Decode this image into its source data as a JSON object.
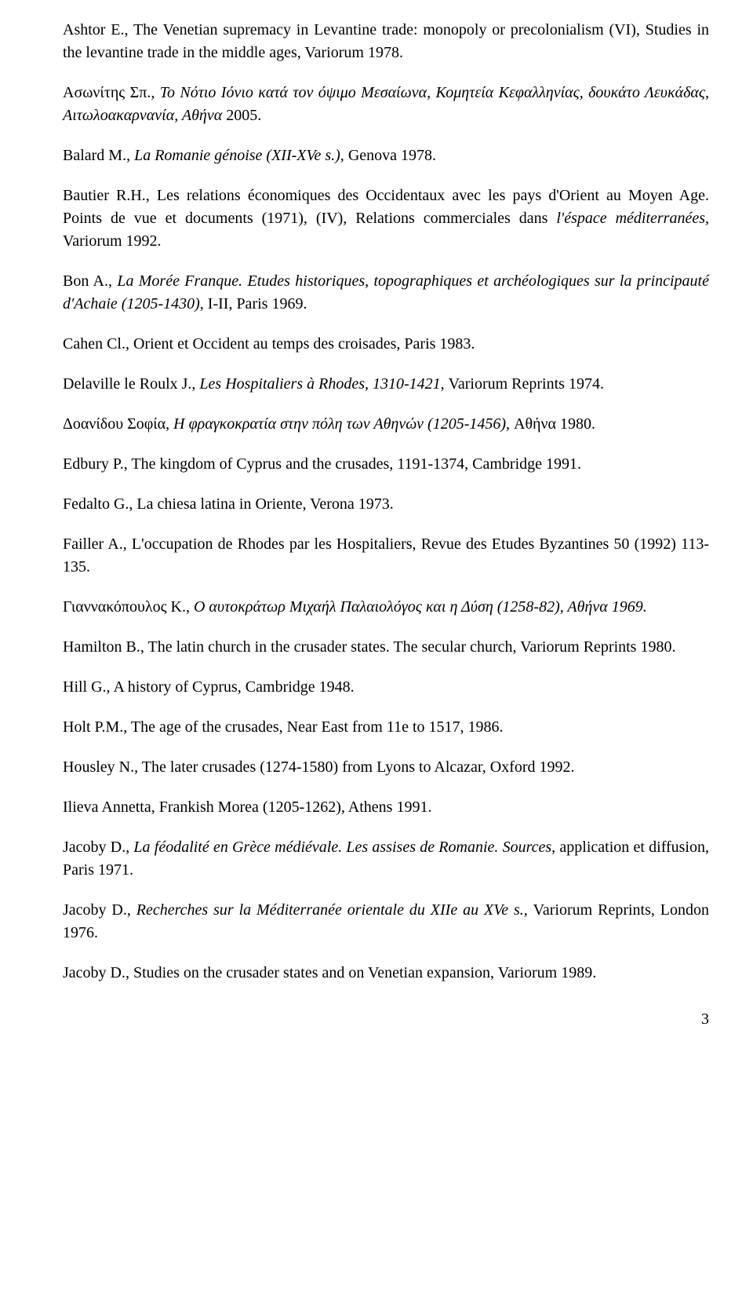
{
  "entries": [
    {
      "pre": "Ashtor E., The Venetian supremacy in Levantine trade: monopoly or precolonialism (VI), Studies in the levantine trade in the middle ages, Variorum 1978."
    },
    {
      "pre": "Ασωνίτης Σπ., ",
      "it": "Το Νότιο Ιόνιο κατά τον όψιμο Μεσαίωνα, Κομητεία Κεφαλληνίας, δουκάτο Λευκάδας, Αιτωλοακαρνανία, Αθήνα ",
      "post": "2005."
    },
    {
      "pre": "Balard M., ",
      "it": "La Romanie génoise (XII-XVe s.), ",
      "post": "Genova 1978."
    },
    {
      "pre": "Bautier R.H., Les relations économiques des Occidentaux avec les pays d'Orient au Moyen Age. Points de vue et documents (1971), (IV),  Relations commerciales dans ",
      "it": "l'éspace méditerranées, ",
      "post": "Variorum 1992."
    },
    {
      "pre": "Bon A., ",
      "it": "La Morée Franque. Etudes historiques, topographiques et archéologiques sur la principauté d'Achaie (1205-1430), ",
      "post": "I-II, Paris 1969."
    },
    {
      "pre": "Cahen Cl., Orient et Occident au temps des croisades, Paris 1983."
    },
    {
      "pre": "Delaville le Roulx J., ",
      "it": "Les Hospitaliers à Rhodes, 1310-1421, ",
      "post": "Variorum Reprints 1974."
    },
    {
      "pre": "Δοανίδου Σοφία, ",
      "it": "Η φραγκοκρατία στην πόλη των Αθηνών (1205-1456), ",
      "post": "Αθήνα 1980."
    },
    {
      "pre": "Edbury P., The kingdom of Cyprus and the crusades, 1191-1374, Cambridge 1991."
    },
    {
      "pre": "Fedalto G., La chiesa latina in Oriente, Verona 1973."
    },
    {
      "pre": "Failler A., L'occupation de Rhodes par les Hospitaliers, Revue des Etudes Byzantines 50 (1992) 113-135."
    },
    {
      "pre": "Γιαννακόπουλος Κ., ",
      "it": "Ο αυτοκράτωρ Μιχαήλ Παλαιολόγος και η Δύση (1258-82), Αθήνα 1969."
    },
    {
      "pre": "Hamilton B., The latin church in the crusader states. The secular church, Variorum Reprints 1980."
    },
    {
      "pre": "Hill G., A history of Cyprus,  Cambridge 1948."
    },
    {
      "pre": "Holt P.M., The age of the crusades, Near East from 11e to 1517, 1986."
    },
    {
      "pre": "Housley N., The later crusades (1274-1580) from Lyons to Alcazar, Oxford 1992."
    },
    {
      "pre": "Ilieva Annetta, Frankish Morea (1205-1262), Athens 1991."
    },
    {
      "pre": "Jacoby D., ",
      "it": "La féodalité en Grèce médiévale. Les assises de Romanie. Sources, ",
      "post": "application et diffusion, Paris 1971."
    },
    {
      "pre": "Jacoby D., ",
      "it": "Recherches sur la Méditerranée orientale du XIIe au XVe s., ",
      "post": "Variorum Reprints, London 1976."
    },
    {
      "pre": "Jacoby D., Studies on the crusader states and on Venetian expansion, Variorum 1989."
    }
  ],
  "page_number": "3"
}
